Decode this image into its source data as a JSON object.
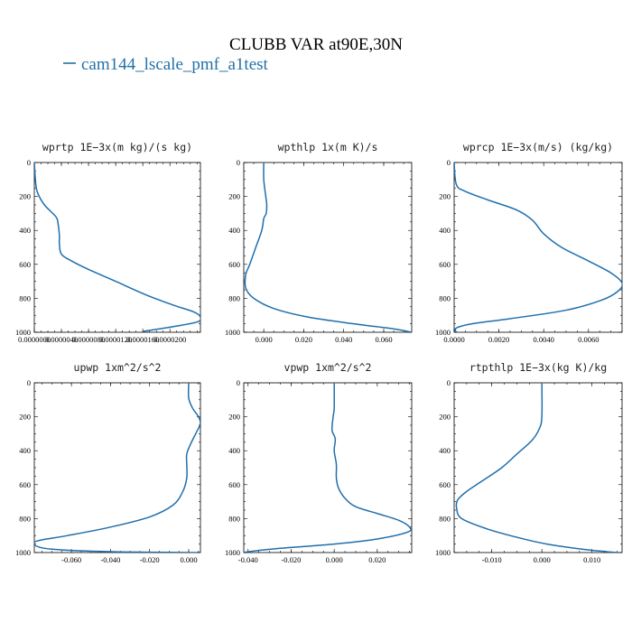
{
  "figure": {
    "title": "CLUBB VAR at90E,30N",
    "legend_label": "cam144_lscale_pmf_a1test",
    "series_color": "#1f6fad"
  },
  "chart_data": [
    {
      "type": "line",
      "title": "wprtp  1E−3x(m kg)/(s kg)",
      "ylim": [
        1000,
        0
      ],
      "y_ticks": [
        "0",
        "200",
        "400",
        "600",
        "800",
        "1000"
      ],
      "xlim": [
        0,
        2.45e-05
      ],
      "x_ticks": [
        0,
        4e-06,
        8e-06,
        1.2e-05,
        1.6e-05,
        2e-05
      ],
      "x_tick_labels": [
        "0.0000000",
        "0.0000040",
        "0.0000080",
        "0.0000120",
        "0.0000160",
        "0.0000200"
      ],
      "grid": false,
      "series": [
        {
          "x": [
            0,
            2e-07,
            5e-07,
            1.5e-06,
            3.2e-06,
            3.5e-06,
            3.7e-06,
            3.7e-06,
            4e-06,
            5.5e-06,
            8e-06,
            1.2e-05,
            1.65e-05,
            2.05e-05,
            2.35e-05,
            2.45e-05,
            2.4e-05,
            2e-05,
            1.6e-05
          ],
          "y": [
            0,
            120,
            180,
            250,
            320,
            360,
            430,
            480,
            540,
            580,
            630,
            700,
            780,
            840,
            880,
            910,
            940,
            970,
            995
          ]
        }
      ]
    },
    {
      "type": "line",
      "title": "wpthlp  1x(m K)/s",
      "ylim": [
        1000,
        0
      ],
      "y_ticks": [
        "0",
        "200",
        "400",
        "600",
        "800",
        "1000"
      ],
      "xlim": [
        -0.01,
        0.074
      ],
      "x_ticks": [
        0,
        0.02,
        0.04,
        0.06
      ],
      "x_tick_labels": [
        "0.000",
        "0.020",
        "0.040",
        "0.060"
      ],
      "grid": false,
      "series": [
        {
          "x": [
            0,
            0,
            0.001,
            0.0015,
            0.0012,
            0,
            -0.001,
            -0.004,
            -0.007,
            -0.009,
            -0.009,
            -0.005,
            0.005,
            0.022,
            0.045,
            0.065,
            0.074
          ],
          "y": [
            0,
            100,
            200,
            250,
            300,
            330,
            400,
            500,
            600,
            660,
            740,
            800,
            860,
            910,
            950,
            980,
            1000
          ]
        }
      ]
    },
    {
      "type": "line",
      "title": "wprcp  1E−3x(m/s) (kg/kg)",
      "ylim": [
        1000,
        0
      ],
      "y_ticks": [
        "0",
        "200",
        "400",
        "600",
        "800",
        "1000"
      ],
      "xlim": [
        0,
        0.0075
      ],
      "x_ticks": [
        0,
        0.002,
        0.004,
        0.006
      ],
      "x_tick_labels": [
        "0.0000",
        "0.0020",
        "0.0040",
        "0.0060"
      ],
      "grid": false,
      "series": [
        {
          "x": [
            0,
            0.0001,
            0.0005,
            0.0015,
            0.0028,
            0.0035,
            0.004,
            0.0048,
            0.006,
            0.007,
            0.0075,
            0.0073,
            0.0066,
            0.005,
            0.0025,
            0.0008,
            0.0001,
            0.0001
          ],
          "y": [
            0,
            130,
            170,
            220,
            280,
            340,
            420,
            500,
            580,
            650,
            710,
            760,
            810,
            870,
            920,
            950,
            975,
            1000
          ]
        }
      ]
    },
    {
      "type": "line",
      "title": "upwp  1xm^2/s^2",
      "ylim": [
        1000,
        0
      ],
      "y_ticks": [
        "0",
        "200",
        "400",
        "600",
        "800",
        "1000"
      ],
      "xlim": [
        -0.079,
        0.006
      ],
      "x_ticks": [
        -0.06,
        -0.04,
        -0.02,
        0
      ],
      "x_tick_labels": [
        "-0.060",
        "-0.040",
        "-0.020",
        "0.000"
      ],
      "grid": false,
      "series": [
        {
          "x": [
            0,
            0,
            0.002,
            0.005,
            0.006,
            0.004,
            0.001,
            -0.001,
            -0.001,
            -0.001,
            -0.003,
            -0.008,
            -0.02,
            -0.04,
            -0.062,
            -0.077,
            -0.079,
            -0.07,
            -0.04,
            0.004
          ],
          "y": [
            0,
            90,
            150,
            200,
            240,
            290,
            360,
            420,
            480,
            560,
            640,
            720,
            790,
            850,
            900,
            930,
            955,
            980,
            995,
            1000
          ]
        }
      ]
    },
    {
      "type": "line",
      "title": "vpwp  1xm^2/s^2",
      "ylim": [
        1000,
        0
      ],
      "y_ticks": [
        "0",
        "200",
        "400",
        "600",
        "800",
        "1000"
      ],
      "xlim": [
        -0.042,
        0.036
      ],
      "x_ticks": [
        -0.04,
        -0.02,
        0,
        0.02
      ],
      "x_tick_labels": [
        "-0.040",
        "-0.020",
        "0.000",
        "0.020"
      ],
      "grid": false,
      "series": [
        {
          "x": [
            0,
            0,
            -0.0005,
            -0.001,
            0.0005,
            0,
            0.001,
            0.001,
            0.002,
            0.005,
            0.01,
            0.02,
            0.03,
            0.035,
            0.034,
            0.02,
            0,
            -0.025,
            -0.04,
            -0.041
          ],
          "y": [
            0,
            150,
            200,
            280,
            330,
            400,
            480,
            560,
            620,
            680,
            730,
            770,
            810,
            850,
            880,
            920,
            950,
            975,
            995,
            1000
          ]
        }
      ]
    },
    {
      "type": "line",
      "title": "rtpthlp  1E−3x(kg K)/kg",
      "ylim": [
        1000,
        0
      ],
      "y_ticks": [
        "0",
        "200",
        "400",
        "600",
        "800",
        "1000"
      ],
      "xlim": [
        -0.0175,
        0.016
      ],
      "x_ticks": [
        -0.01,
        0,
        0.01
      ],
      "x_tick_labels": [
        "-0.010",
        "0.000",
        "0.010"
      ],
      "grid": false,
      "series": [
        {
          "x": [
            0,
            0,
            -0.0005,
            -0.002,
            -0.005,
            -0.008,
            -0.012,
            -0.015,
            -0.0168,
            -0.017,
            -0.016,
            -0.011,
            -0.005,
            0.001,
            0.008,
            0.013,
            0.015
          ],
          "y": [
            0,
            200,
            270,
            340,
            420,
            500,
            580,
            640,
            690,
            740,
            800,
            860,
            910,
            950,
            980,
            995,
            1000
          ]
        }
      ]
    }
  ]
}
